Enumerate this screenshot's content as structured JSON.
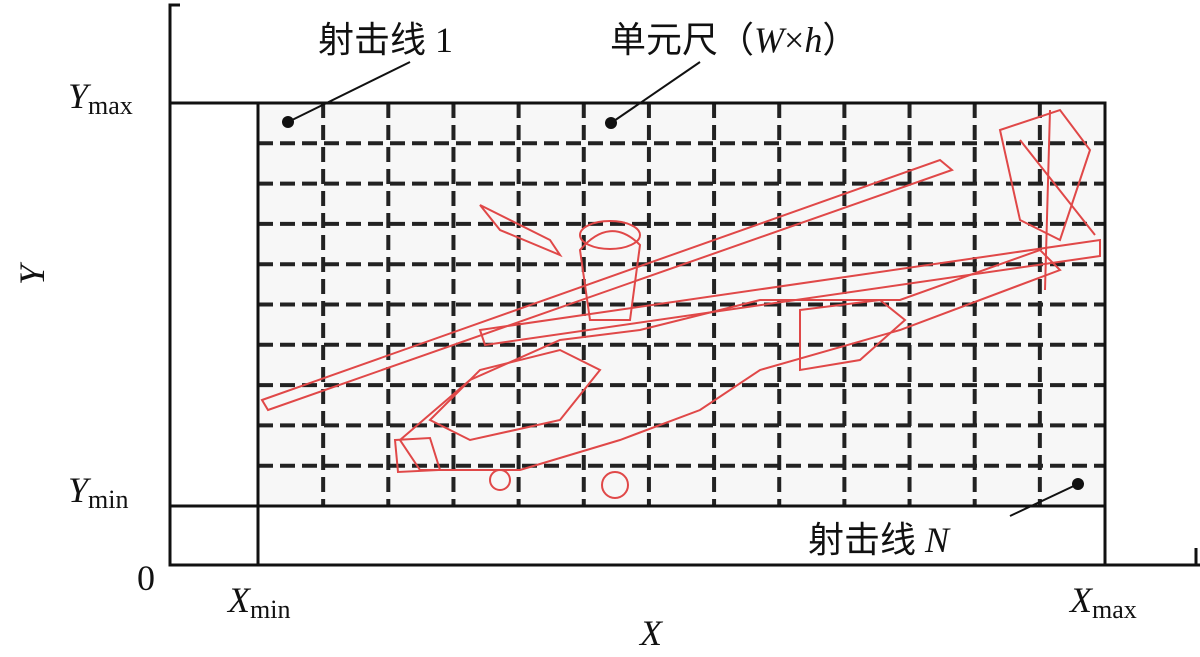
{
  "axes": {
    "x_label": "X",
    "y_label": "Y",
    "origin": "0"
  },
  "bounds": {
    "y_max": {
      "base": "Y",
      "sub": "max"
    },
    "y_min": {
      "base": "Y",
      "sub": "min"
    },
    "x_min": {
      "base": "X",
      "sub": "min"
    },
    "x_max": {
      "base": "X",
      "sub": "max"
    }
  },
  "annotations": {
    "ray_first": {
      "text": "射击线",
      "index": "1"
    },
    "cell_size": {
      "text": "单元尺（",
      "w": "W",
      "times": "×",
      "h": "h",
      "close": "）"
    },
    "ray_last": {
      "text": "射击线",
      "index": "N"
    }
  }
}
